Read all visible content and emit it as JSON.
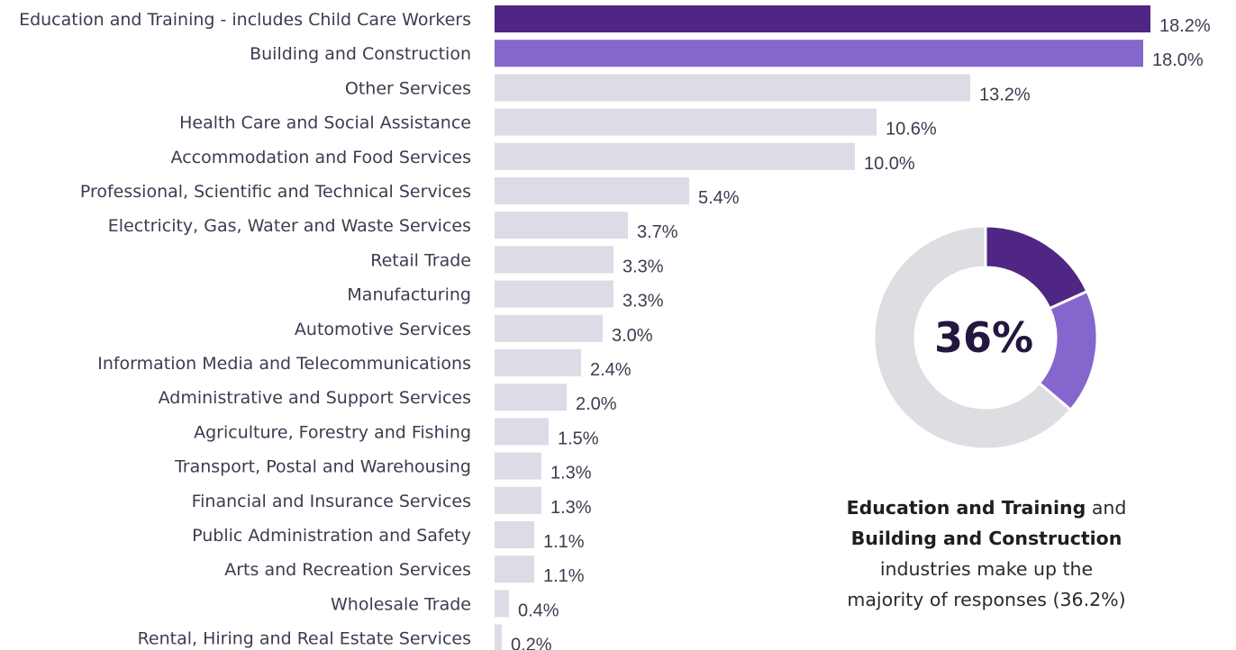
{
  "chart_data": [
    {
      "type": "bar",
      "orientation": "horizontal",
      "categories": [
        "Education and Training - includes Child Care Workers",
        "Building and Construction",
        "Other Services",
        "Health Care and Social Assistance",
        "Accommodation and Food Services",
        "Professional, Scientific and Technical Services",
        "Electricity, Gas, Water and Waste Services",
        "Retail Trade",
        "Manufacturing",
        "Automotive Services",
        "Information Media and Telecommunications",
        "Administrative and Support Services",
        "Agriculture, Forestry and Fishing",
        "Transport, Postal and Warehousing",
        "Financial and Insurance Services",
        "Public Administration and Safety",
        "Arts and Recreation Services",
        "Wholesale Trade",
        "Rental, Hiring and Real Estate Services"
      ],
      "values": [
        18.2,
        18.0,
        13.2,
        10.6,
        10.0,
        5.4,
        3.7,
        3.3,
        3.3,
        3.0,
        2.4,
        2.0,
        1.5,
        1.3,
        1.3,
        1.1,
        1.1,
        0.4,
        0.2
      ],
      "value_labels": [
        "18.2%",
        "18.0%",
        "13.2%",
        "10.6%",
        "10.0%",
        "5.4%",
        "3.7%",
        "3.3%",
        "3.3%",
        "3.0%",
        "2.4%",
        "2.0%",
        "1.5%",
        "1.3%",
        "1.3%",
        "1.1%",
        "1.1%",
        "0.4%",
        "0.2%"
      ],
      "xlim": [
        0,
        18.2
      ],
      "grid": false,
      "title": "",
      "xlabel": "",
      "ylabel": "",
      "colors": {
        "highlight_1": "#4f2683",
        "highlight_2": "#8466cc",
        "default": "#dcdbe6"
      },
      "highlight_indices": [
        0,
        1
      ]
    },
    {
      "type": "pie",
      "style": "donut",
      "slices": [
        {
          "name": "Education and Training",
          "value": 18.2,
          "color": "#4f2683"
        },
        {
          "name": "Building and Construction",
          "value": 18.0,
          "color": "#8466cc"
        },
        {
          "name": "Other",
          "value": 63.8,
          "color": "#dedee2"
        }
      ],
      "center_label": "36%"
    }
  ],
  "caption": {
    "line1_bold": "Education and Training",
    "line1_rest": " and",
    "line2_bold": "Building and Construction",
    "line3": "industries make up the",
    "line4": "majority of responses (36.2%)"
  }
}
